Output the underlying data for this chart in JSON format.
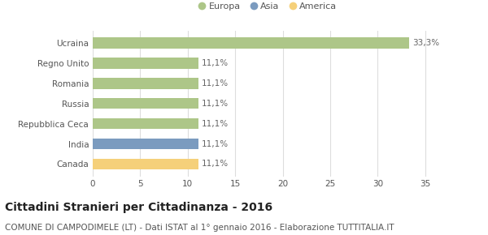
{
  "categories": [
    "Ucraina",
    "Regno Unito",
    "Romania",
    "Russia",
    "Repubblica Ceca",
    "India",
    "Canada"
  ],
  "values": [
    33.3,
    11.1,
    11.1,
    11.1,
    11.1,
    11.1,
    11.1
  ],
  "labels": [
    "33,3%",
    "11,1%",
    "11,1%",
    "11,1%",
    "11,1%",
    "11,1%",
    "11,1%"
  ],
  "bar_colors": [
    "#adc688",
    "#adc688",
    "#adc688",
    "#adc688",
    "#adc688",
    "#7b9bbf",
    "#f5d07a"
  ],
  "legend_items": [
    {
      "label": "Europa",
      "color": "#adc688"
    },
    {
      "label": "Asia",
      "color": "#7b9bbf"
    },
    {
      "label": "America",
      "color": "#f5d07a"
    }
  ],
  "xlim": [
    0,
    37
  ],
  "xticks": [
    0,
    5,
    10,
    15,
    20,
    25,
    30,
    35
  ],
  "title": "Cittadini Stranieri per Cittadinanza - 2016",
  "subtitle": "COMUNE DI CAMPODIMELE (LT) - Dati ISTAT al 1° gennaio 2016 - Elaborazione TUTTITALIA.IT",
  "title_fontsize": 10,
  "subtitle_fontsize": 7.5,
  "background_color": "#ffffff",
  "grid_color": "#dddddd",
  "label_fontsize": 7.5,
  "tick_fontsize": 7.5,
  "bar_height": 0.55
}
